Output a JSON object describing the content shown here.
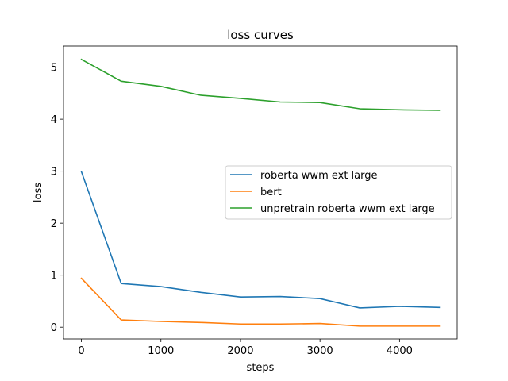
{
  "chart_data": {
    "type": "line",
    "title": "loss curves",
    "xlabel": "steps",
    "ylabel": "loss",
    "xlim": [
      -225,
      4725
    ],
    "ylim": [
      -0.226,
      5.406
    ],
    "x": [
      0,
      500,
      1000,
      1500,
      2000,
      2500,
      3000,
      3500,
      4000,
      4500
    ],
    "xticks": [
      0,
      1000,
      2000,
      3000,
      4000
    ],
    "yticks": [
      0,
      1,
      2,
      3,
      4,
      5
    ],
    "grid": false,
    "legend_position": "center-right",
    "series": [
      {
        "name": "roberta wwm ext large",
        "color": "#1f77b4",
        "values": [
          2.99,
          0.84,
          0.78,
          0.67,
          0.58,
          0.59,
          0.55,
          0.37,
          0.4,
          0.38
        ]
      },
      {
        "name": "bert",
        "color": "#ff7f0e",
        "values": [
          0.94,
          0.14,
          0.11,
          0.09,
          0.06,
          0.06,
          0.07,
          0.02,
          0.02,
          0.02
        ]
      },
      {
        "name": "unpretrain roberta wwm ext large",
        "color": "#2ca02c",
        "values": [
          5.15,
          4.73,
          4.63,
          4.46,
          4.4,
          4.33,
          4.32,
          4.2,
          4.18,
          4.17
        ]
      }
    ]
  }
}
